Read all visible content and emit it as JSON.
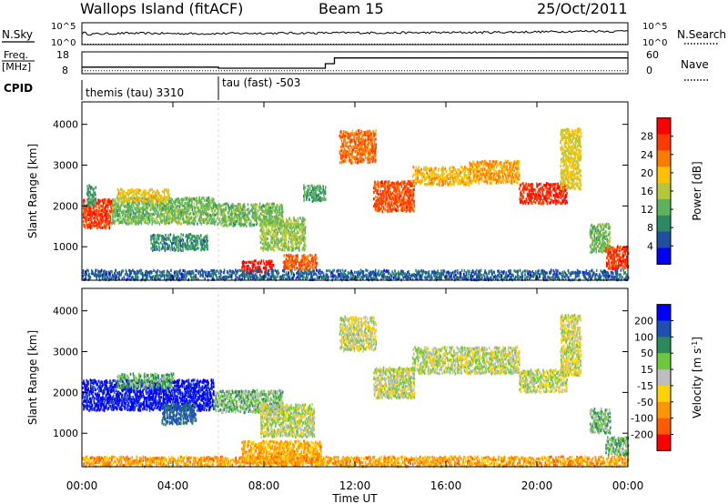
{
  "header": {
    "station": "Wallops Island (fitACF)",
    "beam": "Beam 15",
    "date": "25/Oct/2011"
  },
  "noise_panel": {
    "left_label": "N.Sky",
    "right_label": "N.Search",
    "tick_top": "10^5",
    "tick_bottom": "10^0"
  },
  "freq_panel": {
    "label_top": "Freq.",
    "label_unit": "[MHz]",
    "left_ticks": [
      "18",
      "8"
    ],
    "right_ticks": [
      "60",
      "0"
    ],
    "right_label": "Nave"
  },
  "cpid": {
    "label": "CPID",
    "program_1": "themis (tau) 3310",
    "program_2": "tau (fast) -503"
  },
  "x_axis": {
    "label": "Time UT",
    "ticks": [
      "00:00",
      "04:00",
      "08:00",
      "12:00",
      "16:00",
      "20:00",
      "00:00"
    ]
  },
  "colors": {
    "power": [
      "#0000ff",
      "#1e4fa0",
      "#2a8a66",
      "#5cb35c",
      "#b4c83a",
      "#ffc000",
      "#ff7a00",
      "#ff3a00",
      "#ff0000"
    ],
    "velocity": [
      "#0000ff",
      "#1e50b4",
      "#2a8a5a",
      "#6ec83c",
      "#bebebe",
      "#ffd200",
      "#ff9600",
      "#ff5a00",
      "#ff0000"
    ]
  },
  "chart_data": [
    {
      "type": "line",
      "title": "N.Sky / N.Search",
      "xlabel": "",
      "ylabel": "N.Sky",
      "x_range_hours": [
        0,
        24
      ],
      "y_scale": "log",
      "ylim": [
        "10^0",
        "10^5"
      ],
      "series": [
        {
          "name": "N.Sky",
          "x": [
            0,
            0.1,
            0.3,
            2,
            5,
            8,
            12,
            14,
            18,
            21.5,
            22.5,
            23.5,
            24
          ],
          "y_log": [
            2.6,
            2.7,
            2.4,
            2.6,
            2.5,
            2.6,
            2.7,
            2.7,
            2.8,
            3.0,
            3.1,
            3.0,
            3.3
          ]
        },
        {
          "name": "N.Search",
          "x": [
            0,
            24
          ],
          "y_log": [
            0.1,
            0.1
          ]
        }
      ]
    },
    {
      "type": "line",
      "title": "Freq.",
      "xlabel": "",
      "ylabel": "Freq. [MHz]",
      "ylim": [
        8,
        18
      ],
      "y2_label": "Nave",
      "y2lim": [
        0,
        60
      ],
      "series": [
        {
          "name": "Freq.",
          "x": [
            0,
            6,
            6,
            10.7,
            10.7,
            11.1,
            11.1,
            24
          ],
          "y": [
            11,
            11,
            10.5,
            10.5,
            12.6,
            12.6,
            15.2,
            15.2
          ]
        },
        {
          "name": "Nave",
          "x": [
            0,
            24
          ],
          "y": [
            8,
            8
          ]
        }
      ]
    },
    {
      "type": "heatmap",
      "title": "",
      "xlabel": "",
      "ylabel": "Slant Range [km]",
      "x_range_hours": [
        0,
        24
      ],
      "ylim": [
        180,
        4550
      ],
      "y_ticks": [
        1000,
        2000,
        3000,
        4000
      ],
      "colorbar": {
        "label": "Power [dB]",
        "ticks": [
          4,
          8,
          12,
          16,
          20,
          24,
          28
        ],
        "range": [
          0,
          32
        ]
      },
      "echo_regions": [
        {
          "t0": 0.0,
          "t1": 1.3,
          "r0": 1450,
          "r1": 2150,
          "value": 27
        },
        {
          "t0": 0.2,
          "t1": 0.6,
          "r0": 2000,
          "r1": 2500,
          "value": 10
        },
        {
          "t0": 1.3,
          "t1": 5.8,
          "r0": 1550,
          "r1": 2200,
          "value": 13
        },
        {
          "t0": 1.5,
          "t1": 3.8,
          "r0": 2100,
          "r1": 2400,
          "value": 19
        },
        {
          "t0": 5.8,
          "t1": 8.8,
          "r0": 1500,
          "r1": 2050,
          "value": 13
        },
        {
          "t0": 3.0,
          "t1": 5.5,
          "r0": 900,
          "r1": 1300,
          "value": 9
        },
        {
          "t0": 7.8,
          "t1": 9.8,
          "r0": 900,
          "r1": 1700,
          "value": 15
        },
        {
          "t0": 7.0,
          "t1": 8.4,
          "r0": 350,
          "r1": 650,
          "value": 30
        },
        {
          "t0": 8.8,
          "t1": 10.3,
          "r0": 420,
          "r1": 800,
          "value": 25
        },
        {
          "t0": 9.7,
          "t1": 10.7,
          "r0": 2100,
          "r1": 2500,
          "value": 11
        },
        {
          "t0": 11.3,
          "t1": 12.9,
          "r0": 3050,
          "r1": 3850,
          "value": 24
        },
        {
          "t0": 12.8,
          "t1": 14.6,
          "r0": 1850,
          "r1": 2600,
          "value": 26
        },
        {
          "t0": 14.5,
          "t1": 17.0,
          "r0": 2500,
          "r1": 2950,
          "value": 20
        },
        {
          "t0": 17.0,
          "t1": 19.2,
          "r0": 2550,
          "r1": 3100,
          "value": 21
        },
        {
          "t0": 19.2,
          "t1": 21.3,
          "r0": 2050,
          "r1": 2550,
          "value": 28
        },
        {
          "t0": 21.0,
          "t1": 21.9,
          "r0": 2400,
          "r1": 3900,
          "value": 18
        },
        {
          "t0": 22.3,
          "t1": 23.2,
          "r0": 850,
          "r1": 1550,
          "value": 13
        },
        {
          "t0": 23.0,
          "t1": 24.0,
          "r0": 450,
          "r1": 1000,
          "value": 27
        },
        {
          "t0": 0.0,
          "t1": 24.0,
          "r0": 180,
          "r1": 420,
          "value": 6
        }
      ]
    },
    {
      "type": "heatmap",
      "title": "",
      "xlabel": "Time UT",
      "ylabel": "Slant Range [km]",
      "x_range_hours": [
        0,
        24
      ],
      "ylim": [
        180,
        4550
      ],
      "y_ticks": [
        1000,
        2000,
        3000,
        4000
      ],
      "colorbar": {
        "label": "Velocity [m s^-1]",
        "ticks": [
          200,
          100,
          50,
          15,
          -15,
          -50,
          -100,
          -200
        ],
        "range": [
          -250,
          250
        ]
      },
      "echo_regions": [
        {
          "t0": 0.0,
          "t1": 5.8,
          "r0": 1550,
          "r1": 2300,
          "value": 220
        },
        {
          "t0": 1.5,
          "t1": 4.0,
          "r0": 2100,
          "r1": 2450,
          "value": 40
        },
        {
          "t0": 5.8,
          "t1": 8.8,
          "r0": 1500,
          "r1": 2050,
          "value": 30
        },
        {
          "t0": 3.5,
          "t1": 5.0,
          "r0": 1200,
          "r1": 1700,
          "value": 120
        },
        {
          "t0": 7.8,
          "t1": 10.2,
          "r0": 900,
          "r1": 1700,
          "value": 5
        },
        {
          "t0": 7.0,
          "t1": 10.5,
          "r0": 250,
          "r1": 800,
          "value": -60
        },
        {
          "t0": 11.3,
          "t1": 12.9,
          "r0": 3000,
          "r1": 3850,
          "value": 0
        },
        {
          "t0": 12.8,
          "t1": 14.6,
          "r0": 1850,
          "r1": 2600,
          "value": 0
        },
        {
          "t0": 14.5,
          "t1": 19.2,
          "r0": 2450,
          "r1": 3100,
          "value": 5
        },
        {
          "t0": 19.2,
          "t1": 21.3,
          "r0": 2000,
          "r1": 2550,
          "value": 0
        },
        {
          "t0": 21.0,
          "t1": 21.9,
          "r0": 2400,
          "r1": 3900,
          "value": -5
        },
        {
          "t0": 22.3,
          "t1": 23.2,
          "r0": 1000,
          "r1": 1600,
          "value": 30
        },
        {
          "t0": 23.0,
          "t1": 24.0,
          "r0": 450,
          "r1": 900,
          "value": 35
        },
        {
          "t0": 0.0,
          "t1": 24.0,
          "r0": 180,
          "r1": 420,
          "value": -70
        }
      ]
    }
  ]
}
